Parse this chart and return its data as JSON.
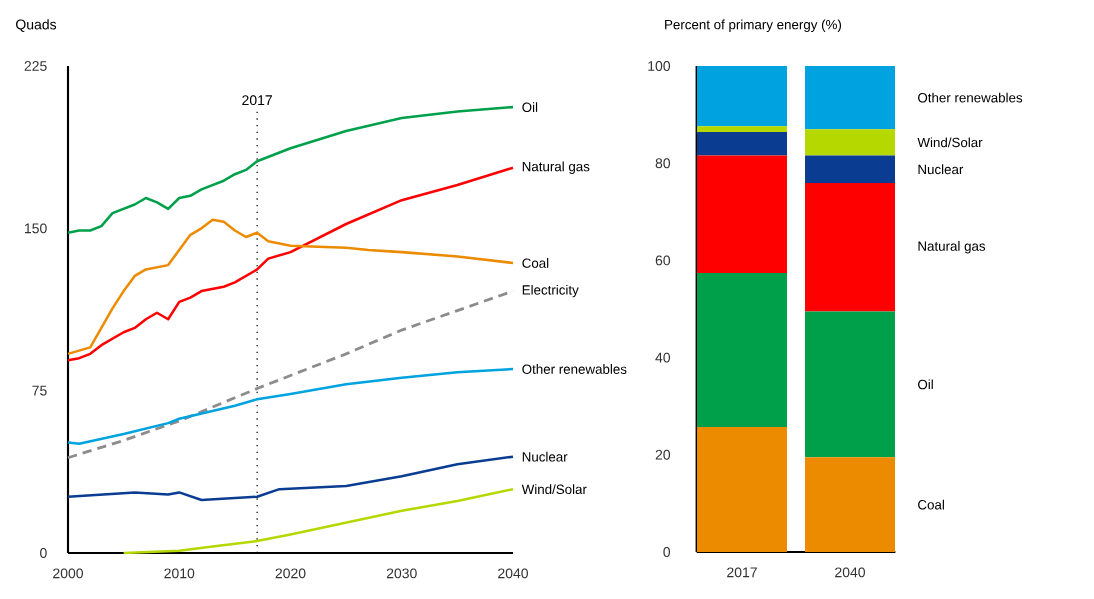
{
  "chart_data": [
    {
      "type": "line",
      "ylabel": "Quads",
      "xlim": [
        2000,
        2040
      ],
      "ylim": [
        0,
        225
      ],
      "xticks": [
        2000,
        2010,
        2020,
        2030,
        2040
      ],
      "yticks": [
        0,
        75,
        150,
        225
      ],
      "ref_lines": [
        {
          "axis": "x",
          "value": 2017,
          "label": "2017",
          "color": "#000000",
          "line_style": "dotted"
        }
      ],
      "series": [
        {
          "name": "Oil",
          "color": "#00a04b",
          "x": [
            2000,
            2001,
            2002,
            2003,
            2004,
            2005,
            2006,
            2007,
            2008,
            2009,
            2010,
            2011,
            2012,
            2013,
            2014,
            2015,
            2016,
            2017,
            2020,
            2025,
            2030,
            2035,
            2040
          ],
          "values": [
            148,
            149,
            149,
            151,
            157,
            159,
            161,
            164,
            162,
            159,
            164,
            165,
            168,
            170,
            172,
            175,
            177,
            181,
            187,
            195,
            201,
            204,
            206
          ]
        },
        {
          "name": "Natural gas",
          "color": "#ff0000",
          "x": [
            2000,
            2001,
            2002,
            2003,
            2004,
            2005,
            2006,
            2007,
            2008,
            2009,
            2010,
            2011,
            2012,
            2013,
            2014,
            2015,
            2016,
            2017,
            2018,
            2020,
            2025,
            2030,
            2035,
            2040
          ],
          "values": [
            89,
            90,
            92,
            96,
            99,
            102,
            104,
            108,
            111,
            108,
            116,
            118,
            121,
            122,
            123,
            125,
            128,
            131,
            136,
            139,
            152,
            163,
            170,
            178
          ]
        },
        {
          "name": "Coal",
          "color": "#ed8b00",
          "x": [
            2000,
            2002,
            2003,
            2004,
            2005,
            2006,
            2007,
            2008,
            2009,
            2010,
            2011,
            2012,
            2013,
            2014,
            2015,
            2016,
            2017,
            2018,
            2020,
            2025,
            2027,
            2030,
            2035,
            2040
          ],
          "values": [
            92,
            95,
            104,
            113,
            121,
            128,
            131,
            132,
            133,
            140,
            147,
            150,
            154,
            153,
            149,
            146,
            148,
            144,
            142,
            141,
            140,
            139,
            137,
            134
          ]
        },
        {
          "name": "Electricity",
          "color": "#8c8c8c",
          "line_style": "dashed",
          "x": [
            2000,
            2005,
            2010,
            2017,
            2020,
            2025,
            2030,
            2035,
            2040
          ],
          "values": [
            44,
            52,
            61,
            76,
            82,
            92,
            103,
            112,
            121
          ]
        },
        {
          "name": "Other renewables",
          "color": "#00a3e0",
          "x": [
            2000,
            2001,
            2005,
            2009,
            2010,
            2015,
            2017,
            2020,
            2025,
            2030,
            2035,
            2040
          ],
          "values": [
            51,
            50.5,
            55,
            60,
            62,
            68,
            71,
            73.5,
            78,
            81,
            83.5,
            85
          ]
        },
        {
          "name": "Nuclear",
          "color": "#0a3d91",
          "x": [
            2000,
            2006,
            2009,
            2010,
            2012,
            2017,
            2019,
            2025,
            2030,
            2035,
            2040
          ],
          "values": [
            26,
            28,
            27,
            28,
            24.5,
            26,
            29.5,
            31,
            35.5,
            41,
            44.5
          ]
        },
        {
          "name": "Wind/Solar",
          "color": "#b5d800",
          "x": [
            2005,
            2010,
            2013,
            2017,
            2020,
            2025,
            2030,
            2035,
            2040
          ],
          "values": [
            0,
            1,
            3,
            5.5,
            8.5,
            14,
            19.5,
            24,
            29.5
          ]
        }
      ]
    },
    {
      "type": "bar",
      "stacked": true,
      "ylabel": "Percent of primary energy (%)",
      "categories": [
        "2017",
        "2040"
      ],
      "ylim": [
        0,
        100
      ],
      "yticks": [
        0,
        20,
        40,
        60,
        80,
        100
      ],
      "series": [
        {
          "name": "Coal",
          "color": "#ed8b00",
          "values": [
            25.7,
            19.5
          ]
        },
        {
          "name": "Oil",
          "color": "#00a04b",
          "values": [
            31.7,
            30
          ]
        },
        {
          "name": "Natural gas",
          "color": "#ff0000",
          "values": [
            24.2,
            26.4
          ]
        },
        {
          "name": "Nuclear",
          "color": "#0a3d91",
          "values": [
            4.8,
            5.7
          ]
        },
        {
          "name": "Wind/Solar",
          "color": "#b5d800",
          "values": [
            1.2,
            5.4
          ]
        },
        {
          "name": "Other renewables",
          "color": "#00a3e0",
          "values": [
            12.4,
            13
          ]
        }
      ]
    }
  ]
}
